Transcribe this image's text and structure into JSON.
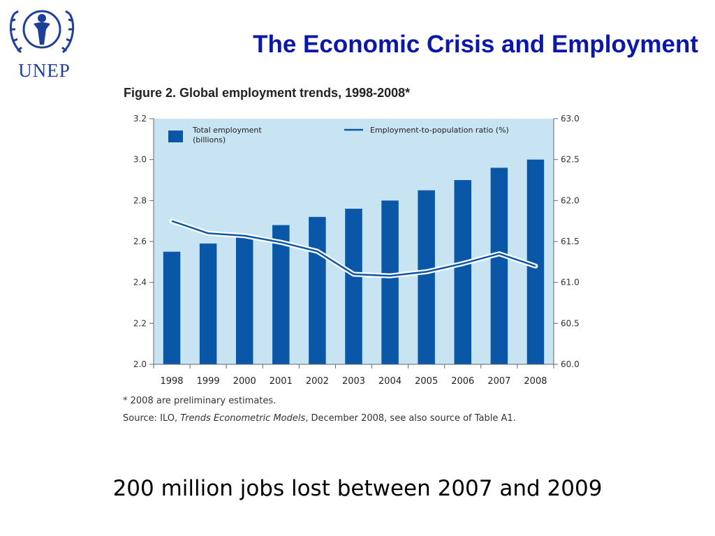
{
  "logo": {
    "text": "UNEP"
  },
  "slide_title": "The Economic Crisis and Employment",
  "figure": {
    "label": "Figure 2.",
    "title": "Global employment trends, 1998-2008*",
    "note": "* 2008 are preliminary estimates.",
    "source_prefix": "Source: ILO, ",
    "source_italic": "Trends Econometric Models",
    "source_suffix": ", December 2008, see also source of Table A1."
  },
  "caption": "200 million jobs lost between 2007 and 2009",
  "colors": {
    "bar": "#0a57a8",
    "plot_bg": "#c8e3f2",
    "line": "#0a57a8",
    "title": "#0b17a8"
  },
  "chart_data": {
    "type": "bar",
    "categories": [
      "1998",
      "1999",
      "2000",
      "2001",
      "2002",
      "2003",
      "2004",
      "2005",
      "2006",
      "2007",
      "2008"
    ],
    "series": [
      {
        "name": "Total employment (billions)",
        "type": "bar",
        "axis": "left",
        "values": [
          2.55,
          2.59,
          2.62,
          2.68,
          2.72,
          2.76,
          2.8,
          2.85,
          2.9,
          2.96,
          3.0
        ]
      },
      {
        "name": "Employment-to-population ratio (%)",
        "type": "line",
        "axis": "right",
        "values": [
          61.75,
          61.6,
          61.57,
          61.49,
          61.38,
          61.1,
          61.08,
          61.13,
          61.23,
          61.35,
          61.2
        ]
      }
    ],
    "legend_bar_line1": "Total employment",
    "legend_bar_line2": "(billions)",
    "legend_line": "Employment-to-population ratio (%)",
    "ylim": [
      2.0,
      3.2
    ],
    "yticks": [
      "2.0",
      "2.2",
      "2.4",
      "2.6",
      "2.8",
      "3.0",
      "3.2"
    ],
    "y2lim": [
      60.0,
      63.0
    ],
    "y2ticks": [
      "60.0",
      "60.5",
      "61.0",
      "61.5",
      "62.0",
      "62.5",
      "63.0"
    ],
    "legend_position": "top",
    "grid": false
  }
}
